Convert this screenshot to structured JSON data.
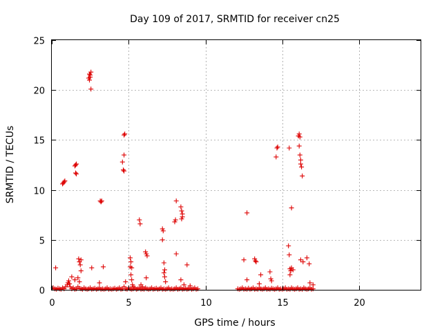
{
  "chart_data": {
    "type": "scatter",
    "title": "Day 109 of 2017, SRMTID for receiver cn25",
    "xlabel": "GPS time / hours",
    "ylabel": "SRMTID / TECUs",
    "xlim": [
      0,
      24
    ],
    "ylim": [
      0,
      25
    ],
    "xticks": [
      0,
      5,
      10,
      15,
      20
    ],
    "yticks": [
      0,
      5,
      10,
      15,
      20,
      25
    ],
    "marker": "+",
    "color": "#dd0000",
    "grid": true,
    "series": [
      {
        "name": "SRMTID",
        "points": [
          [
            0.1,
            0.2
          ],
          [
            0.2,
            0.1
          ],
          [
            0.3,
            0.05
          ],
          [
            0.4,
            0.15
          ],
          [
            0.5,
            0.1
          ],
          [
            0.6,
            0.05
          ],
          [
            0.7,
            0.2
          ],
          [
            0.8,
            0.1
          ],
          [
            0.9,
            0.3
          ],
          [
            1.0,
            0.5
          ],
          [
            1.05,
            0.7
          ],
          [
            1.1,
            0.9
          ],
          [
            1.15,
            0.6
          ],
          [
            1.2,
            0.3
          ],
          [
            1.3,
            0.1
          ],
          [
            1.4,
            0.2
          ],
          [
            1.5,
            0.05
          ],
          [
            1.6,
            0.1
          ],
          [
            1.7,
            0.3
          ],
          [
            1.8,
            0.15
          ],
          [
            1.9,
            0.1
          ],
          [
            2.0,
            0.05
          ],
          [
            2.1,
            0.2
          ],
          [
            2.2,
            0.1
          ],
          [
            2.3,
            0.05
          ],
          [
            2.4,
            0.1
          ],
          [
            2.5,
            0.2
          ],
          [
            2.6,
            0.05
          ],
          [
            2.7,
            0.1
          ],
          [
            2.8,
            0.15
          ],
          [
            2.9,
            0.05
          ],
          [
            3.0,
            0.1
          ],
          [
            3.1,
            0.2
          ],
          [
            3.2,
            0.05
          ],
          [
            3.3,
            0.1
          ],
          [
            3.4,
            0.05
          ],
          [
            3.5,
            0.1
          ],
          [
            3.6,
            0.2
          ],
          [
            3.7,
            0.05
          ],
          [
            3.8,
            0.1
          ],
          [
            3.9,
            0.05
          ],
          [
            4.0,
            0.1
          ],
          [
            4.1,
            0.15
          ],
          [
            4.2,
            0.05
          ],
          [
            4.3,
            0.1
          ],
          [
            4.4,
            0.2
          ],
          [
            4.5,
            0.05
          ],
          [
            4.6,
            0.1
          ],
          [
            4.7,
            0.3
          ],
          [
            4.8,
            0.1
          ],
          [
            4.9,
            0.05
          ],
          [
            5.0,
            0.2
          ],
          [
            5.1,
            0.1
          ],
          [
            5.2,
            0.05
          ],
          [
            5.3,
            0.1
          ],
          [
            5.4,
            0.2
          ],
          [
            5.5,
            0.05
          ],
          [
            5.6,
            0.1
          ],
          [
            5.7,
            0.2
          ],
          [
            5.8,
            0.05
          ],
          [
            5.9,
            0.1
          ],
          [
            6.0,
            0.05
          ],
          [
            6.1,
            0.2
          ],
          [
            6.2,
            0.1
          ],
          [
            6.3,
            0.05
          ],
          [
            6.4,
            0.1
          ],
          [
            6.5,
            0.2
          ],
          [
            6.6,
            0.05
          ],
          [
            6.7,
            0.1
          ],
          [
            6.8,
            0.15
          ],
          [
            6.9,
            0.05
          ],
          [
            7.0,
            0.1
          ],
          [
            7.1,
            0.2
          ],
          [
            7.2,
            0.05
          ],
          [
            7.3,
            0.1
          ],
          [
            7.4,
            0.05
          ],
          [
            7.5,
            0.1
          ],
          [
            7.6,
            0.2
          ],
          [
            7.7,
            0.05
          ],
          [
            7.8,
            0.1
          ],
          [
            7.9,
            0.05
          ],
          [
            8.0,
            0.1
          ],
          [
            8.1,
            0.2
          ],
          [
            8.2,
            0.05
          ],
          [
            8.3,
            0.1
          ],
          [
            8.4,
            0.2
          ],
          [
            8.5,
            0.05
          ],
          [
            8.6,
            0.1
          ],
          [
            8.7,
            0.15
          ],
          [
            8.8,
            0.05
          ],
          [
            8.9,
            0.1
          ],
          [
            9.0,
            0.2
          ],
          [
            9.1,
            0.05
          ],
          [
            9.2,
            0.1
          ],
          [
            9.3,
            0.2
          ],
          [
            9.4,
            0.05
          ],
          [
            9.5,
            0.1
          ],
          [
            0.25,
            2.2
          ],
          [
            0.7,
            10.6
          ],
          [
            0.75,
            10.7
          ],
          [
            0.8,
            10.8
          ],
          [
            0.85,
            10.9
          ],
          [
            1.5,
            12.4
          ],
          [
            1.55,
            12.5
          ],
          [
            1.6,
            12.6
          ],
          [
            1.55,
            11.7
          ],
          [
            1.6,
            11.6
          ],
          [
            1.3,
            1.3
          ],
          [
            1.5,
            1.0
          ],
          [
            1.7,
            1.2
          ],
          [
            1.8,
            0.8
          ],
          [
            1.75,
            3.1
          ],
          [
            1.8,
            2.8
          ],
          [
            1.85,
            2.5
          ],
          [
            1.9,
            3.0
          ],
          [
            1.9,
            1.9
          ],
          [
            2.4,
            21.2
          ],
          [
            2.45,
            21.0
          ],
          [
            2.5,
            21.5
          ],
          [
            2.55,
            21.8
          ],
          [
            2.5,
            21.3
          ],
          [
            2.45,
            21.6
          ],
          [
            2.55,
            20.1
          ],
          [
            2.6,
            2.2
          ],
          [
            3.1,
            0.7
          ],
          [
            3.15,
            8.9
          ],
          [
            3.2,
            8.8
          ],
          [
            3.25,
            8.9
          ],
          [
            3.35,
            2.3
          ],
          [
            4.6,
            12.8
          ],
          [
            4.65,
            12.0
          ],
          [
            4.7,
            11.9
          ],
          [
            4.7,
            13.5
          ],
          [
            4.7,
            15.5
          ],
          [
            4.75,
            15.6
          ],
          [
            4.8,
            0.8
          ],
          [
            5.1,
            3.2
          ],
          [
            5.15,
            2.8
          ],
          [
            5.1,
            2.3
          ],
          [
            5.2,
            2.2
          ],
          [
            5.15,
            1.5
          ],
          [
            5.2,
            1.0
          ],
          [
            5.25,
            0.5
          ],
          [
            5.3,
            0.3
          ],
          [
            5.7,
            7.0
          ],
          [
            5.75,
            6.6
          ],
          [
            5.8,
            0.5
          ],
          [
            5.9,
            0.3
          ],
          [
            6.1,
            3.8
          ],
          [
            6.15,
            3.6
          ],
          [
            6.2,
            3.4
          ],
          [
            6.15,
            1.2
          ],
          [
            7.2,
            6.1
          ],
          [
            7.25,
            5.9
          ],
          [
            7.2,
            5.0
          ],
          [
            7.3,
            2.7
          ],
          [
            7.35,
            2.0
          ],
          [
            7.3,
            1.7
          ],
          [
            7.35,
            1.3
          ],
          [
            7.4,
            0.8
          ],
          [
            8.0,
            6.8
          ],
          [
            8.05,
            7.0
          ],
          [
            8.1,
            3.6
          ],
          [
            8.1,
            8.9
          ],
          [
            8.4,
            8.3
          ],
          [
            8.45,
            7.9
          ],
          [
            8.5,
            7.6
          ],
          [
            8.5,
            7.3
          ],
          [
            8.45,
            7.1
          ],
          [
            8.4,
            1.0
          ],
          [
            8.6,
            0.5
          ],
          [
            8.8,
            2.5
          ],
          [
            9.0,
            0.4
          ],
          [
            12.1,
            0.1
          ],
          [
            12.2,
            0.05
          ],
          [
            12.3,
            0.1
          ],
          [
            12.4,
            0.2
          ],
          [
            12.5,
            0.05
          ],
          [
            12.6,
            0.1
          ],
          [
            12.7,
            0.05
          ],
          [
            12.8,
            0.15
          ],
          [
            12.9,
            0.05
          ],
          [
            13.0,
            0.1
          ],
          [
            13.1,
            0.2
          ],
          [
            13.2,
            0.05
          ],
          [
            13.3,
            0.1
          ],
          [
            13.4,
            0.05
          ],
          [
            13.5,
            0.2
          ],
          [
            13.6,
            0.1
          ],
          [
            13.7,
            0.05
          ],
          [
            13.8,
            0.1
          ],
          [
            13.9,
            0.2
          ],
          [
            14.0,
            0.05
          ],
          [
            14.1,
            0.1
          ],
          [
            14.2,
            0.05
          ],
          [
            14.3,
            0.15
          ],
          [
            14.4,
            0.1
          ],
          [
            14.5,
            0.05
          ],
          [
            14.6,
            0.1
          ],
          [
            14.7,
            0.2
          ],
          [
            14.8,
            0.05
          ],
          [
            14.9,
            0.1
          ],
          [
            15.0,
            0.05
          ],
          [
            15.1,
            0.1
          ],
          [
            15.2,
            0.2
          ],
          [
            15.3,
            0.05
          ],
          [
            15.4,
            0.1
          ],
          [
            15.5,
            0.05
          ],
          [
            15.6,
            0.2
          ],
          [
            15.7,
            0.1
          ],
          [
            15.8,
            0.05
          ],
          [
            15.9,
            0.1
          ],
          [
            16.0,
            0.2
          ],
          [
            16.1,
            0.05
          ],
          [
            16.2,
            0.1
          ],
          [
            16.3,
            0.05
          ],
          [
            16.4,
            0.2
          ],
          [
            16.5,
            0.1
          ],
          [
            16.6,
            0.05
          ],
          [
            16.7,
            0.1
          ],
          [
            16.8,
            0.2
          ],
          [
            16.9,
            0.05
          ],
          [
            17.0,
            0.1
          ],
          [
            12.5,
            3.0
          ],
          [
            12.7,
            7.7
          ],
          [
            12.7,
            1.0
          ],
          [
            13.2,
            3.1
          ],
          [
            13.3,
            2.8
          ],
          [
            13.25,
            2.9
          ],
          [
            13.5,
            0.6
          ],
          [
            13.6,
            1.5
          ],
          [
            14.2,
            1.8
          ],
          [
            14.25,
            1.1
          ],
          [
            14.3,
            0.9
          ],
          [
            14.6,
            13.3
          ],
          [
            14.65,
            14.2
          ],
          [
            14.7,
            14.3
          ],
          [
            15.4,
            4.4
          ],
          [
            15.45,
            3.5
          ],
          [
            15.5,
            2.1
          ],
          [
            15.55,
            1.9
          ],
          [
            15.5,
            1.5
          ],
          [
            15.45,
            14.2
          ],
          [
            15.6,
            8.2
          ],
          [
            15.6,
            2.2
          ],
          [
            15.7,
            2.0
          ],
          [
            16.05,
            15.4
          ],
          [
            16.1,
            15.6
          ],
          [
            16.15,
            15.3
          ],
          [
            16.1,
            14.4
          ],
          [
            16.15,
            13.5
          ],
          [
            16.2,
            13.0
          ],
          [
            16.2,
            12.6
          ],
          [
            16.25,
            12.3
          ],
          [
            16.3,
            11.4
          ],
          [
            16.2,
            3.0
          ],
          [
            16.35,
            2.8
          ],
          [
            16.6,
            3.2
          ],
          [
            16.75,
            2.6
          ],
          [
            16.8,
            0.7
          ],
          [
            17.0,
            0.5
          ]
        ]
      }
    ]
  }
}
